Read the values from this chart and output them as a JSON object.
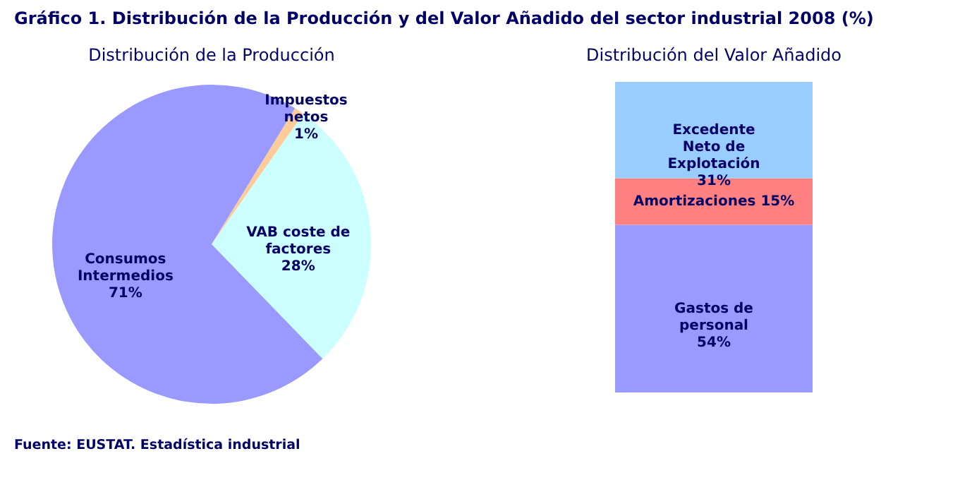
{
  "chart_data": [
    {
      "type": "pie",
      "title": "Distribución de la Producción",
      "categories": [
        "Impuestos netos",
        "VAB coste de factores",
        "Consumos Intermedios"
      ],
      "values": [
        1,
        28,
        71
      ],
      "colors": [
        "#ffcc99",
        "#ccffff",
        "#9999ff"
      ],
      "value_labels": [
        "1%",
        "28%",
        "71%"
      ],
      "annotations": [
        "Gráfico 1. Distribución de la Producción y del Valor Añadido del sector industrial 2008 (%)",
        "Fuente: EUSTAT. Estadística industrial"
      ]
    },
    {
      "type": "bar",
      "stacked": true,
      "title": "Distribución del Valor Añadido",
      "categories": [
        null
      ],
      "series": [
        {
          "name": "Gastos de personal",
          "color": "#9999ff",
          "values": [
            54
          ],
          "value_labels": [
            "54%"
          ]
        },
        {
          "name": "Amortizaciones",
          "color": "#ff8080",
          "values": [
            15
          ],
          "value_labels": [
            "15%"
          ]
        },
        {
          "name": "Excedente Neto de Explotación",
          "color": "#99ccff",
          "values": [
            31
          ],
          "value_labels": [
            "31%"
          ]
        }
      ]
    }
  ]
}
